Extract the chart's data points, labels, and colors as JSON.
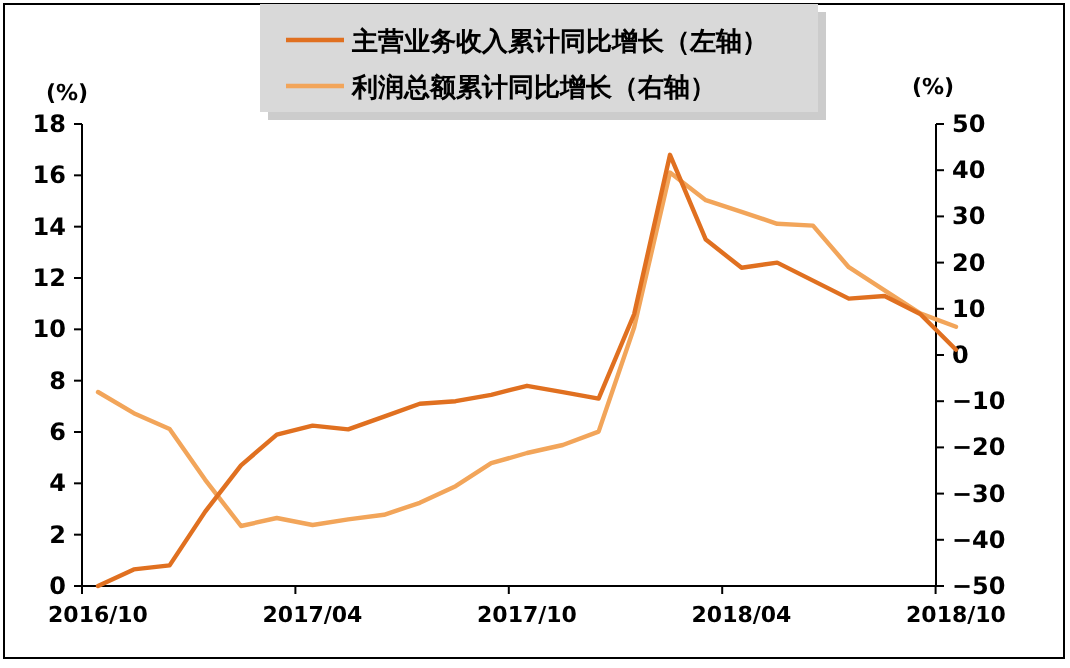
{
  "chart_data": {
    "type": "line",
    "categories": [
      "2016/10",
      null,
      null,
      null,
      null,
      null,
      "2017/04",
      null,
      null,
      null,
      null,
      null,
      "2017/10",
      null,
      null,
      null,
      null,
      null,
      "2018/04",
      null,
      null,
      null,
      null,
      null,
      "2018/10"
    ],
    "ylabel": "(%)",
    "y2label": "(%)",
    "ylim": [
      0,
      18
    ],
    "yticks": [
      0,
      2,
      4,
      6,
      8,
      10,
      12,
      14,
      16,
      18
    ],
    "y2lim": [
      -50,
      50
    ],
    "y2ticks": [
      -50,
      -40,
      -30,
      -20,
      -10,
      0,
      10,
      20,
      30,
      40,
      50
    ],
    "legend": "top",
    "grid": false,
    "series": [
      {
        "name": "主营业务收入累计同比增长（左轴）",
        "color": "#e07020",
        "values": [
          0,
          0.65,
          0.8,
          2.9,
          4.7,
          5.9,
          6.25,
          6.1,
          6.6,
          7.1,
          7.2,
          7.45,
          7.8,
          7.55,
          7.3,
          10.6,
          16.8,
          13.5,
          12.4,
          12.6,
          11.9,
          11.2,
          11.3,
          10.6,
          9.2
        ]
      },
      {
        "name": "利润总额累计同比增长（右轴）",
        "color": "#f2a55a",
        "axis": "y2",
        "values": [
          -8,
          -12.6,
          -16,
          -27,
          -37,
          -35.3,
          -36.8,
          -35.6,
          -34.6,
          -32,
          -28.4,
          -23.4,
          -21.2,
          -19.5,
          -16.6,
          6,
          39.5,
          33.5,
          31,
          28.4,
          28,
          19,
          14,
          9,
          6.1
        ]
      }
    ]
  }
}
